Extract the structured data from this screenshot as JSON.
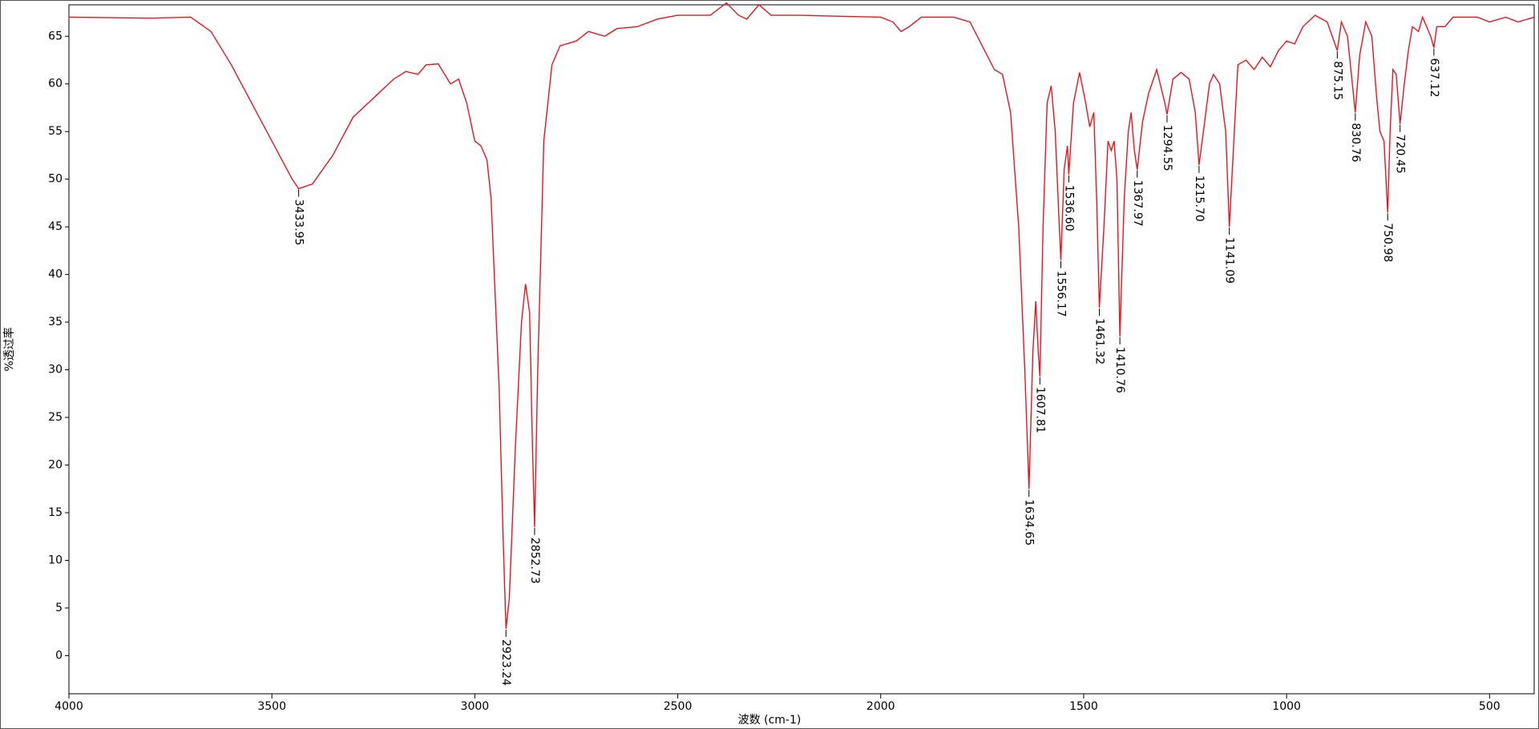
{
  "chart_data": {
    "type": "line",
    "x_label": "波数 (cm-1)",
    "y_label": "%透过率",
    "color": "#e8141e",
    "xlim": [
      4000,
      390
    ],
    "ylim": [
      -4,
      68.3
    ],
    "xticks": [
      4000,
      3500,
      3000,
      2500,
      2000,
      1500,
      1000,
      500
    ],
    "yticks": [
      0,
      5,
      10,
      15,
      20,
      25,
      30,
      35,
      40,
      45,
      50,
      55,
      60,
      65
    ],
    "x": [
      4000,
      3800,
      3700,
      3650,
      3600,
      3550,
      3500,
      3450,
      3433.95,
      3400,
      3350,
      3300,
      3250,
      3200,
      3170,
      3140,
      3120,
      3090,
      3060,
      3040,
      3020,
      3000,
      2985,
      2970,
      2960,
      2950,
      2940,
      2930,
      2923.24,
      2915,
      2900,
      2885,
      2875,
      2865,
      2858,
      2852.73,
      2845,
      2830,
      2810,
      2790,
      2750,
      2720,
      2680,
      2650,
      2600,
      2550,
      2500,
      2420,
      2380,
      2350,
      2330,
      2300,
      2270,
      2200,
      2000,
      1970,
      1950,
      1930,
      1900,
      1820,
      1780,
      1750,
      1720,
      1700,
      1680,
      1660,
      1645,
      1634.65,
      1625,
      1618,
      1612,
      1607.81,
      1600,
      1590,
      1580,
      1570,
      1562,
      1556.17,
      1548,
      1540,
      1536.6,
      1525,
      1510,
      1495,
      1485,
      1475,
      1468,
      1461.32,
      1450,
      1440,
      1432,
      1425,
      1418,
      1410.76,
      1400,
      1390,
      1383,
      1375,
      1367.97,
      1355,
      1340,
      1320,
      1300,
      1294.55,
      1280,
      1260,
      1240,
      1225,
      1215.7,
      1205,
      1190,
      1180,
      1165,
      1150,
      1141.09,
      1130,
      1120,
      1100,
      1080,
      1060,
      1040,
      1020,
      1000,
      980,
      960,
      930,
      900,
      875.15,
      865,
      850,
      838,
      830.76,
      820,
      805,
      790,
      778,
      770,
      760,
      750.98,
      745,
      738,
      730,
      720.45,
      710,
      700,
      690,
      675,
      665,
      655,
      645,
      637.12,
      630,
      610,
      590,
      530,
      500,
      460,
      430,
      390
    ],
    "values": [
      67,
      66.9,
      67,
      65.5,
      62,
      58,
      54,
      50,
      49,
      49.5,
      52.5,
      56.5,
      58.5,
      60.5,
      61.3,
      61,
      62,
      62.1,
      60,
      60.5,
      58,
      54,
      53.5,
      52,
      48,
      38,
      28,
      12,
      2.8,
      6,
      22,
      35,
      39,
      36,
      22,
      13.5,
      30,
      54,
      62,
      64,
      64.5,
      65.5,
      65,
      65.8,
      66,
      66.8,
      67.2,
      67.2,
      68.5,
      67.2,
      66.8,
      68.3,
      67.2,
      67.2,
      67,
      66.5,
      65.5,
      66,
      67,
      67,
      66.5,
      64,
      61.5,
      61,
      57,
      45,
      30,
      17.5,
      32,
      37.2,
      32,
      29.3,
      45,
      58,
      59.8,
      55,
      47,
      41.5,
      51,
      53.5,
      50.5,
      58,
      61.2,
      58,
      55.5,
      57,
      48,
      36.5,
      45,
      54,
      53,
      54,
      50,
      33.5,
      48,
      55,
      57,
      53,
      51,
      56,
      59,
      61.5,
      58,
      56.8,
      60.5,
      61.2,
      60.5,
      57,
      51.5,
      55,
      60,
      61,
      60,
      55,
      45,
      54,
      62,
      62.5,
      61.5,
      62.8,
      61.8,
      63.5,
      64.5,
      64.2,
      66,
      67.2,
      66.5,
      63.5,
      66.5,
      65,
      60,
      57,
      63,
      66.5,
      65,
      58.5,
      55,
      54,
      46.5,
      55,
      61.5,
      61,
      55.8,
      60,
      63.5,
      66,
      65.5,
      67,
      66,
      65,
      63.8,
      66,
      66,
      67,
      67,
      66.5,
      67,
      66.5,
      67
    ],
    "annotations": [
      {
        "x": 3433.95,
        "y": 49,
        "label": "3433.95"
      },
      {
        "x": 2923.24,
        "y": 2.8,
        "label": "2923.24"
      },
      {
        "x": 2852.73,
        "y": 13.5,
        "label": "2852.73"
      },
      {
        "x": 1634.65,
        "y": 17.5,
        "label": "1634.65"
      },
      {
        "x": 1607.81,
        "y": 29.3,
        "label": "1607.81"
      },
      {
        "x": 1556.17,
        "y": 41.5,
        "label": "1556.17"
      },
      {
        "x": 1536.6,
        "y": 50.5,
        "label": "1536.60"
      },
      {
        "x": 1461.32,
        "y": 36.5,
        "label": "1461.32"
      },
      {
        "x": 1410.76,
        "y": 33.5,
        "label": "1410.76"
      },
      {
        "x": 1367.97,
        "y": 51,
        "label": "1367.97"
      },
      {
        "x": 1294.55,
        "y": 56.8,
        "label": "1294.55"
      },
      {
        "x": 1215.7,
        "y": 51.5,
        "label": "1215.70"
      },
      {
        "x": 1141.09,
        "y": 45,
        "label": "1141.09"
      },
      {
        "x": 875.15,
        "y": 63.5,
        "label": "875.15"
      },
      {
        "x": 830.76,
        "y": 57,
        "label": "830.76"
      },
      {
        "x": 750.98,
        "y": 46.5,
        "label": "750.98"
      },
      {
        "x": 720.45,
        "y": 55.8,
        "label": "720.45"
      },
      {
        "x": 637.12,
        "y": 63.8,
        "label": "637.12"
      }
    ]
  }
}
